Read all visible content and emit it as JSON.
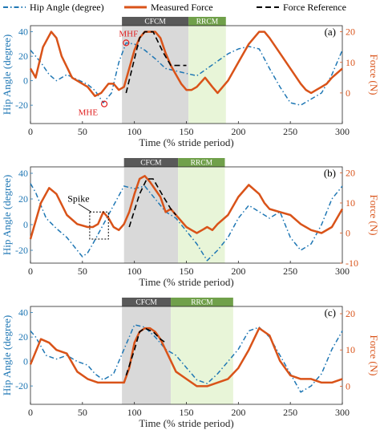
{
  "legend": [
    {
      "label": "Hip Angle (degree)",
      "color": "#1f77b4",
      "style": "dashdot"
    },
    {
      "label": "Measured Force",
      "color": "#d95319",
      "style": "solid"
    },
    {
      "label": "Force Reference",
      "color": "#000000",
      "style": "dashed"
    }
  ],
  "colors": {
    "hip": "#1f77b4",
    "force": "#d95319",
    "reference": "#000000",
    "cfcm_region": "#d9d9d9",
    "rrcm_region": "#e8f5d8",
    "cfcm_label_bg": "#595959",
    "rrcm_label_bg": "#70a04a",
    "marker": "#e02020"
  },
  "chart_data": [
    {
      "type": "line",
      "panel_label": "(a)",
      "xlabel": "Time (% stride period)",
      "ylabel_left": "Hip Angle (degree)",
      "ylabel_right": "Force (N)",
      "xlim": [
        0,
        300
      ],
      "ylim_left": [
        -35,
        45
      ],
      "ylim_right": [
        -10,
        22
      ],
      "xticks": [
        0,
        50,
        100,
        150,
        200,
        250,
        300
      ],
      "yticks_left": [
        -20,
        0,
        20,
        40
      ],
      "yticks_right": [
        0,
        10,
        20
      ],
      "regions": [
        {
          "label": "CFCM",
          "x0": 88,
          "x1": 152
        },
        {
          "label": "RRCM",
          "x0": 152,
          "x1": 188
        }
      ],
      "annotations": [
        {
          "text": "MHF",
          "x": 92,
          "y": 31
        },
        {
          "text": "MHE",
          "x": 71,
          "y": -19
        }
      ],
      "series": [
        {
          "name": "Hip Angle (degree)",
          "axis": "left",
          "x": [
            0,
            10,
            18,
            25,
            35,
            45,
            55,
            62,
            70,
            78,
            85,
            92,
            100,
            110,
            120,
            130,
            140,
            150,
            160,
            170,
            180,
            190,
            200,
            210,
            220,
            230,
            240,
            250,
            260,
            270,
            280,
            290,
            300
          ],
          "y": [
            25,
            15,
            5,
            0,
            5,
            1,
            -3,
            -8,
            -18,
            -10,
            15,
            31,
            30,
            25,
            18,
            10,
            8,
            6,
            4,
            10,
            16,
            22,
            26,
            28,
            26,
            10,
            -5,
            -18,
            -20,
            -15,
            -10,
            5,
            25
          ]
        },
        {
          "name": "Measured Force",
          "axis": "right",
          "x": [
            0,
            5,
            12,
            20,
            25,
            30,
            40,
            50,
            55,
            62,
            68,
            75,
            80,
            85,
            90,
            95,
            100,
            105,
            110,
            120,
            125,
            130,
            135,
            140,
            145,
            150,
            155,
            160,
            168,
            175,
            180,
            190,
            200,
            210,
            220,
            225,
            230,
            240,
            250,
            260,
            265,
            270,
            275,
            280,
            285,
            290,
            300
          ],
          "y": [
            8,
            5,
            15,
            20,
            18,
            12,
            5,
            3,
            2,
            -1,
            0,
            3,
            3,
            1,
            2,
            8,
            14,
            18,
            20,
            20,
            18,
            13,
            9,
            6,
            3,
            1,
            1,
            2,
            5,
            2,
            0,
            4,
            10,
            16,
            20,
            20,
            18,
            13,
            8,
            3,
            1,
            0,
            1,
            2,
            3,
            5,
            8
          ]
        },
        {
          "name": "Force Reference",
          "axis": "right",
          "x": [
            92,
            105,
            110,
            118,
            128,
            135,
            150
          ],
          "y": [
            0,
            18,
            20,
            20,
            13,
            9,
            9
          ]
        }
      ]
    },
    {
      "type": "line",
      "panel_label": "(b)",
      "xlabel": "Time (% stride period)",
      "ylabel_left": "Hip Angle (degree)",
      "ylabel_right": "Force (N)",
      "xlim": [
        0,
        300
      ],
      "ylim_left": [
        -30,
        45
      ],
      "ylim_right": [
        -10,
        22
      ],
      "xticks": [
        0,
        50,
        100,
        150,
        200,
        250,
        300
      ],
      "yticks_left": [
        -20,
        0,
        20,
        40
      ],
      "yticks_right": [
        -10,
        0,
        10,
        20
      ],
      "regions": [
        {
          "label": "CFCM",
          "x0": 90,
          "x1": 142
        },
        {
          "label": "RRCM",
          "x0": 142,
          "x1": 187
        }
      ],
      "annotations": [
        {
          "text": "Spike",
          "x": 55,
          "y": 15
        }
      ],
      "series": [
        {
          "name": "Hip Angle (degree)",
          "axis": "left",
          "x": [
            0,
            5,
            15,
            25,
            35,
            45,
            50,
            55,
            60,
            70,
            80,
            90,
            100,
            110,
            120,
            130,
            140,
            150,
            160,
            170,
            180,
            190,
            200,
            210,
            220,
            230,
            240,
            250,
            260,
            270,
            280,
            290,
            300
          ],
          "y": [
            32,
            25,
            5,
            -3,
            -10,
            -20,
            -25,
            -22,
            -15,
            0,
            15,
            30,
            28,
            30,
            20,
            10,
            5,
            -5,
            -15,
            -28,
            -20,
            -10,
            5,
            15,
            10,
            5,
            10,
            -10,
            -20,
            -15,
            0,
            20,
            30
          ]
        },
        {
          "name": "Measured Force",
          "axis": "right",
          "x": [
            0,
            10,
            18,
            25,
            35,
            45,
            55,
            60,
            65,
            70,
            75,
            80,
            85,
            90,
            95,
            100,
            105,
            110,
            115,
            125,
            130,
            135,
            140,
            145,
            150,
            155,
            160,
            165,
            170,
            175,
            180,
            190,
            200,
            210,
            220,
            225,
            230,
            240,
            250,
            260,
            270,
            280,
            290,
            300
          ],
          "y": [
            -2,
            10,
            15,
            13,
            6,
            3,
            2,
            2,
            3,
            7,
            5,
            2,
            1,
            3,
            7,
            13,
            18,
            19,
            17,
            12,
            7,
            8,
            6,
            4,
            2,
            1,
            0,
            1,
            2,
            1,
            3,
            6,
            12,
            16,
            13,
            10,
            8,
            7,
            6,
            3,
            1,
            0,
            2,
            8
          ]
        },
        {
          "name": "Force Reference",
          "axis": "right",
          "x": [
            95,
            105,
            112,
            118,
            128,
            135,
            140
          ],
          "y": [
            2,
            13,
            18,
            18,
            12,
            8,
            6
          ]
        }
      ]
    },
    {
      "type": "line",
      "panel_label": "(c)",
      "xlabel": "Time (% stride period)",
      "ylabel_left": "Hip Angle (degree)",
      "ylabel_right": "Force (N)",
      "xlim": [
        0,
        300
      ],
      "ylim_left": [
        -35,
        45
      ],
      "ylim_right": [
        -5,
        22
      ],
      "xticks": [
        0,
        50,
        100,
        150,
        200,
        250,
        300
      ],
      "yticks_left": [
        -20,
        0,
        20,
        40
      ],
      "yticks_right": [
        0,
        10,
        20
      ],
      "regions": [
        {
          "label": "CFCM",
          "x0": 88,
          "x1": 135
        },
        {
          "label": "RRCM",
          "x0": 135,
          "x1": 195
        }
      ],
      "annotations": [],
      "series": [
        {
          "name": "Hip Angle (degree)",
          "axis": "left",
          "x": [
            0,
            5,
            15,
            25,
            35,
            45,
            55,
            62,
            70,
            80,
            90,
            100,
            110,
            120,
            130,
            140,
            150,
            160,
            170,
            180,
            190,
            200,
            210,
            220,
            230,
            240,
            250,
            260,
            270,
            280,
            290,
            300
          ],
          "y": [
            25,
            20,
            5,
            2,
            5,
            0,
            -3,
            -10,
            -15,
            -10,
            10,
            30,
            28,
            20,
            10,
            5,
            -5,
            -15,
            -18,
            -10,
            0,
            10,
            25,
            28,
            20,
            5,
            -10,
            -25,
            -20,
            -10,
            10,
            25
          ]
        },
        {
          "name": "Measured Force",
          "axis": "right",
          "x": [
            0,
            10,
            18,
            25,
            35,
            45,
            55,
            65,
            75,
            85,
            90,
            95,
            100,
            105,
            110,
            115,
            120,
            125,
            130,
            135,
            140,
            150,
            160,
            170,
            180,
            190,
            200,
            210,
            220,
            230,
            240,
            250,
            260,
            270,
            280,
            290,
            300
          ],
          "y": [
            6,
            13,
            12,
            10,
            9,
            4,
            2,
            1,
            1,
            1,
            1,
            5,
            12,
            15,
            16,
            16,
            15,
            13,
            10,
            7,
            4,
            2,
            0,
            0,
            1,
            2,
            5,
            10,
            16,
            14,
            7,
            3,
            2,
            2,
            1,
            1,
            2
          ]
        },
        {
          "name": "Force Reference",
          "axis": "right",
          "x": [
            92,
            100,
            105,
            110,
            118,
            125,
            130
          ],
          "y": [
            3,
            10,
            15,
            16,
            15,
            13,
            12
          ]
        }
      ]
    }
  ]
}
